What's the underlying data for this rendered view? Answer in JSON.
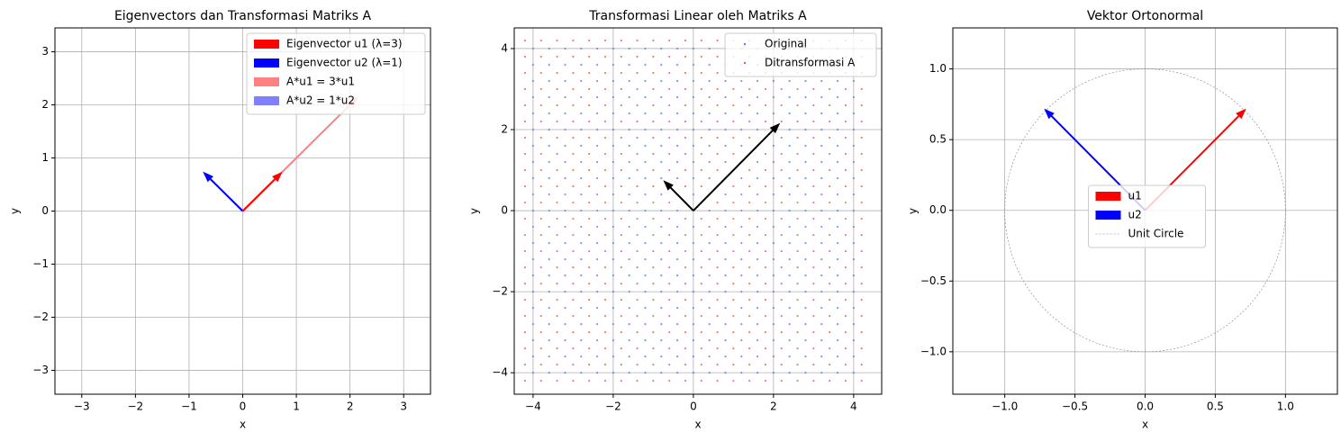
{
  "chart_data": [
    {
      "type": "quiver",
      "title": "Eigenvectors dan Transformasi Matriks A",
      "x_label": "x",
      "y_label": "y",
      "xlim": [
        -3.5,
        3.5
      ],
      "ylim": [
        -3.45,
        3.45
      ],
      "xticks": [
        {
          "value": -3,
          "label": "−3"
        },
        {
          "value": -2,
          "label": "−2"
        },
        {
          "value": -1,
          "label": "−1"
        },
        0,
        1,
        2,
        3
      ],
      "yticks": [
        {
          "value": -3,
          "label": "−3"
        },
        {
          "value": -2,
          "label": "−2"
        },
        {
          "value": -1,
          "label": "−1"
        },
        0,
        1,
        2,
        3
      ],
      "grid": true,
      "legend": "upper right",
      "series": [
        {
          "name": "Eigenvector u1 (λ=3)",
          "color": "#ff0000",
          "x": [
            0,
            0.707
          ],
          "values": [
            0,
            0.707
          ]
        },
        {
          "name": "Eigenvector u2 (λ=1)",
          "color": "#0000ff",
          "x": [
            0,
            -0.707
          ],
          "values": [
            0,
            0.707
          ]
        },
        {
          "name": "A*u1 = 3*u1",
          "color": "#ff8080",
          "x": [
            0,
            2.12
          ],
          "values": [
            0,
            2.12
          ]
        },
        {
          "name": "A*u2 = 1*u2",
          "color": "#8080ff",
          "x": [
            0,
            -0.707
          ],
          "values": [
            0,
            0.707
          ]
        }
      ]
    },
    {
      "type": "scatter",
      "title": "Transformasi Linear oleh Matriks A",
      "x_label": "x",
      "y_label": "y",
      "xlim": [
        -4.47,
        4.7
      ],
      "ylim": [
        -4.53,
        4.51
      ],
      "xticks": [
        {
          "value": -4,
          "label": "−4"
        },
        {
          "value": -2,
          "label": "−2"
        },
        0,
        2,
        4
      ],
      "yticks": [
        {
          "value": -4,
          "label": "−4"
        },
        {
          "value": -2,
          "label": "−2"
        },
        0,
        2,
        4
      ],
      "grid": true,
      "legend": "upper right",
      "series": [
        {
          "name": "Original",
          "color": "#6f6fff",
          "x": [
            -4,
            -3.6,
            -3.2,
            -2.8,
            -2.4,
            -2,
            -1.6,
            -1.2,
            -0.8,
            -0.4,
            0,
            0.4,
            0.8,
            1.2,
            1.6,
            2,
            2.4,
            2.8,
            3.2,
            3.6,
            4
          ],
          "y": [
            -4,
            -3.6,
            -3.2,
            -2.8,
            -2.4,
            -2,
            -1.6,
            -1.2,
            -0.8,
            -0.4,
            0,
            0.4,
            0.8,
            1.2,
            1.6,
            2,
            2.4,
            2.8,
            3.2,
            3.6,
            4
          ]
        },
        {
          "name": "Ditransformasi A",
          "color": "#e06060",
          "x": [
            -4.2,
            -3.8,
            -3.4,
            -3,
            -2.6,
            -2.2,
            -1.8,
            -1.4,
            -1,
            -0.6,
            -0.2,
            0.2,
            0.6,
            1,
            1.4,
            1.8,
            2.2,
            2.6,
            3,
            3.4,
            3.8,
            4.2
          ],
          "y": [
            -4.2,
            -3.8,
            -3.4,
            -3,
            -2.6,
            -2.2,
            -1.8,
            -1.4,
            -1,
            -0.6,
            -0.2,
            0.2,
            0.6,
            1,
            1.4,
            1.8,
            2.2,
            2.6,
            3,
            3.4,
            3.8,
            4.2
          ]
        }
      ],
      "vectors": [
        {
          "color": "#000000",
          "x": [
            0,
            -0.707
          ],
          "values": [
            0,
            0.707
          ]
        },
        {
          "color": "#000000",
          "x": [
            0,
            2.12
          ],
          "values": [
            0,
            2.12
          ]
        }
      ]
    },
    {
      "type": "quiver",
      "title": "Vektor Ortonormal",
      "x_label": "x",
      "y_label": "y",
      "xlim": [
        -1.37,
        1.37
      ],
      "ylim": [
        -1.3,
        1.29
      ],
      "xticks": [
        {
          "value": -1,
          "label": "−1.0"
        },
        {
          "value": -0.5,
          "label": "−0.5"
        },
        {
          "value": 0,
          "label": "0.0"
        },
        {
          "value": 0.5,
          "label": "0.5"
        },
        {
          "value": 1,
          "label": "1.0"
        }
      ],
      "yticks": [
        {
          "value": -1,
          "label": "−1.0"
        },
        {
          "value": -0.5,
          "label": "−0.5"
        },
        {
          "value": 0,
          "label": "0.0"
        },
        {
          "value": 0.5,
          "label": "0.5"
        },
        {
          "value": 1,
          "label": "1.0"
        }
      ],
      "grid": true,
      "legend": "center",
      "series": [
        {
          "name": "u1",
          "color": "#ff0000",
          "x": [
            0,
            0.707
          ],
          "values": [
            0,
            0.707
          ]
        },
        {
          "name": "u2",
          "color": "#0000ff",
          "x": [
            0,
            -0.707
          ],
          "values": [
            0,
            0.707
          ]
        }
      ],
      "circle": {
        "name": "Unit Circle",
        "color": "#808080",
        "center": [
          0,
          0
        ],
        "r": 1
      }
    }
  ]
}
